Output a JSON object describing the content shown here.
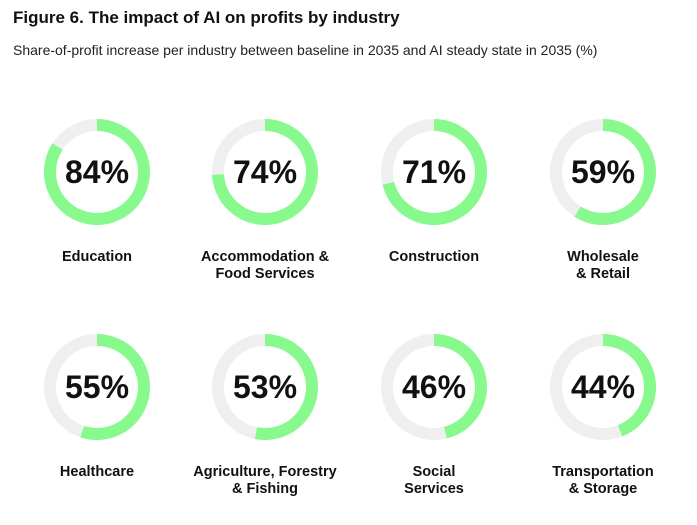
{
  "chart_data": {
    "type": "donut",
    "title": "Figure 6. The impact of AI on profits by industry",
    "subtitle": "Share-of-profit increase per industry between baseline in 2035 and AI steady state in 2035 (%)",
    "categories": [
      "Education",
      "Accommodation & Food Services",
      "Construction",
      "Wholesale & Retail",
      "Healthcare",
      "Agriculture, Forestry & Fishing",
      "Social Services",
      "Transportation & Storage"
    ],
    "label_lines": [
      [
        "Education"
      ],
      [
        "Accommodation &",
        "Food Services"
      ],
      [
        "Construction"
      ],
      [
        "Wholesale",
        "& Retail"
      ],
      [
        "Healthcare"
      ],
      [
        "Agriculture, Forestry",
        "& Fishing"
      ],
      [
        "Social",
        "Services"
      ],
      [
        "Transportation",
        "& Storage"
      ]
    ],
    "values": [
      84,
      74,
      71,
      59,
      55,
      53,
      46,
      44
    ],
    "value_labels": [
      "84%",
      "74%",
      "71%",
      "59%",
      "55%",
      "53%",
      "46%",
      "44%"
    ],
    "unit": "%",
    "colors": {
      "fill": "#88F98C",
      "track": "#EFEFEF"
    }
  }
}
